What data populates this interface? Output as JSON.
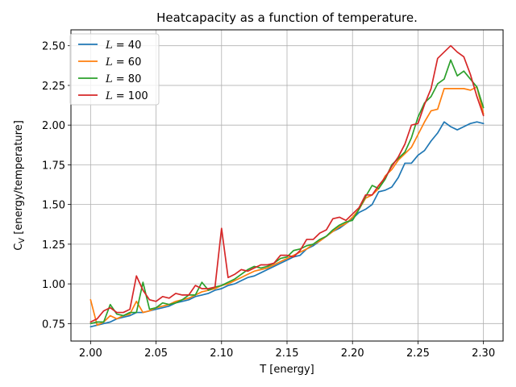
{
  "chart_data": {
    "type": "line",
    "title": "Heatcapacity as a function of temperature.",
    "xlabel": "T [energy]",
    "ylabel_main": "C",
    "ylabel_sub": "V",
    "ylabel_rest": " [energy/temperature]",
    "xlim": [
      1.985,
      2.315
    ],
    "ylim": [
      0.64,
      2.6
    ],
    "xticks": [
      2.0,
      2.05,
      2.1,
      2.15,
      2.2,
      2.25,
      2.3
    ],
    "xtick_labels": [
      "2.00",
      "2.05",
      "2.10",
      "2.15",
      "2.20",
      "2.25",
      "2.30"
    ],
    "yticks": [
      0.75,
      1.0,
      1.25,
      1.5,
      1.75,
      2.0,
      2.25,
      2.5
    ],
    "ytick_labels": [
      "0.75",
      "1.00",
      "1.25",
      "1.50",
      "1.75",
      "2.00",
      "2.25",
      "2.50"
    ],
    "grid": true,
    "legend_position": "top-left",
    "x": [
      2.0,
      2.005,
      2.01,
      2.015,
      2.02,
      2.025,
      2.03,
      2.035,
      2.04,
      2.045,
      2.05,
      2.055,
      2.06,
      2.065,
      2.07,
      2.075,
      2.08,
      2.085,
      2.09,
      2.095,
      2.1,
      2.105,
      2.11,
      2.115,
      2.12,
      2.125,
      2.13,
      2.135,
      2.14,
      2.145,
      2.15,
      2.155,
      2.16,
      2.165,
      2.17,
      2.175,
      2.18,
      2.185,
      2.19,
      2.195,
      2.2,
      2.205,
      2.21,
      2.215,
      2.22,
      2.225,
      2.23,
      2.235,
      2.24,
      2.245,
      2.25,
      2.255,
      2.26,
      2.265,
      2.27,
      2.275,
      2.28,
      2.285,
      2.29,
      2.295,
      2.3
    ],
    "series": [
      {
        "name": "L = 40",
        "legend_prefix": "L",
        "legend_value": "40",
        "color": "#1f77b4",
        "values": [
          0.73,
          0.74,
          0.75,
          0.76,
          0.78,
          0.79,
          0.8,
          0.82,
          0.82,
          0.83,
          0.84,
          0.85,
          0.86,
          0.88,
          0.89,
          0.9,
          0.92,
          0.93,
          0.94,
          0.96,
          0.97,
          0.99,
          1.0,
          1.02,
          1.04,
          1.05,
          1.07,
          1.09,
          1.11,
          1.13,
          1.15,
          1.17,
          1.18,
          1.22,
          1.24,
          1.27,
          1.3,
          1.33,
          1.35,
          1.38,
          1.41,
          1.45,
          1.47,
          1.5,
          1.58,
          1.59,
          1.61,
          1.67,
          1.76,
          1.76,
          1.81,
          1.84,
          1.9,
          1.95,
          2.02,
          1.99,
          1.97,
          1.99,
          2.01,
          2.02,
          2.01
        ]
      },
      {
        "name": "L = 60",
        "legend_prefix": "L",
        "legend_value": "60",
        "color": "#ff7f0e",
        "values": [
          0.9,
          0.74,
          0.76,
          0.8,
          0.78,
          0.8,
          0.81,
          0.89,
          0.82,
          0.83,
          0.85,
          0.86,
          0.87,
          0.89,
          0.9,
          0.91,
          0.93,
          0.95,
          0.96,
          0.97,
          0.99,
          1.0,
          1.02,
          1.04,
          1.06,
          1.08,
          1.09,
          1.1,
          1.12,
          1.14,
          1.16,
          1.18,
          1.2,
          1.22,
          1.25,
          1.27,
          1.3,
          1.33,
          1.36,
          1.38,
          1.42,
          1.47,
          1.54,
          1.56,
          1.6,
          1.68,
          1.72,
          1.78,
          1.82,
          1.86,
          1.94,
          2.02,
          2.09,
          2.1,
          2.23,
          2.23,
          2.23,
          2.23,
          2.22,
          2.24,
          2.07
        ]
      },
      {
        "name": "L = 80",
        "legend_prefix": "L",
        "legend_value": "80",
        "color": "#2ca02c",
        "values": [
          0.75,
          0.76,
          0.76,
          0.87,
          0.81,
          0.8,
          0.82,
          0.82,
          1.01,
          0.84,
          0.85,
          0.88,
          0.87,
          0.88,
          0.9,
          0.93,
          0.93,
          1.01,
          0.96,
          0.98,
          0.99,
          1.01,
          1.03,
          1.06,
          1.09,
          1.11,
          1.1,
          1.11,
          1.13,
          1.16,
          1.17,
          1.21,
          1.22,
          1.24,
          1.25,
          1.28,
          1.3,
          1.34,
          1.37,
          1.39,
          1.4,
          1.47,
          1.55,
          1.62,
          1.6,
          1.66,
          1.75,
          1.79,
          1.83,
          1.92,
          2.05,
          2.14,
          2.18,
          2.26,
          2.29,
          2.41,
          2.31,
          2.34,
          2.29,
          2.24,
          2.11
        ]
      },
      {
        "name": "L = 100",
        "legend_prefix": "L",
        "legend_value": "100",
        "color": "#d62728",
        "values": [
          0.76,
          0.78,
          0.83,
          0.85,
          0.82,
          0.82,
          0.84,
          1.05,
          0.96,
          0.9,
          0.89,
          0.92,
          0.91,
          0.94,
          0.93,
          0.93,
          0.99,
          0.97,
          0.97,
          0.98,
          1.35,
          1.04,
          1.06,
          1.09,
          1.08,
          1.1,
          1.12,
          1.12,
          1.13,
          1.18,
          1.18,
          1.17,
          1.21,
          1.28,
          1.28,
          1.32,
          1.34,
          1.41,
          1.42,
          1.4,
          1.44,
          1.48,
          1.56,
          1.56,
          1.62,
          1.67,
          1.74,
          1.8,
          1.88,
          2.0,
          2.01,
          2.13,
          2.23,
          2.42,
          2.46,
          2.5,
          2.46,
          2.43,
          2.32,
          2.18,
          2.06
        ]
      }
    ]
  }
}
